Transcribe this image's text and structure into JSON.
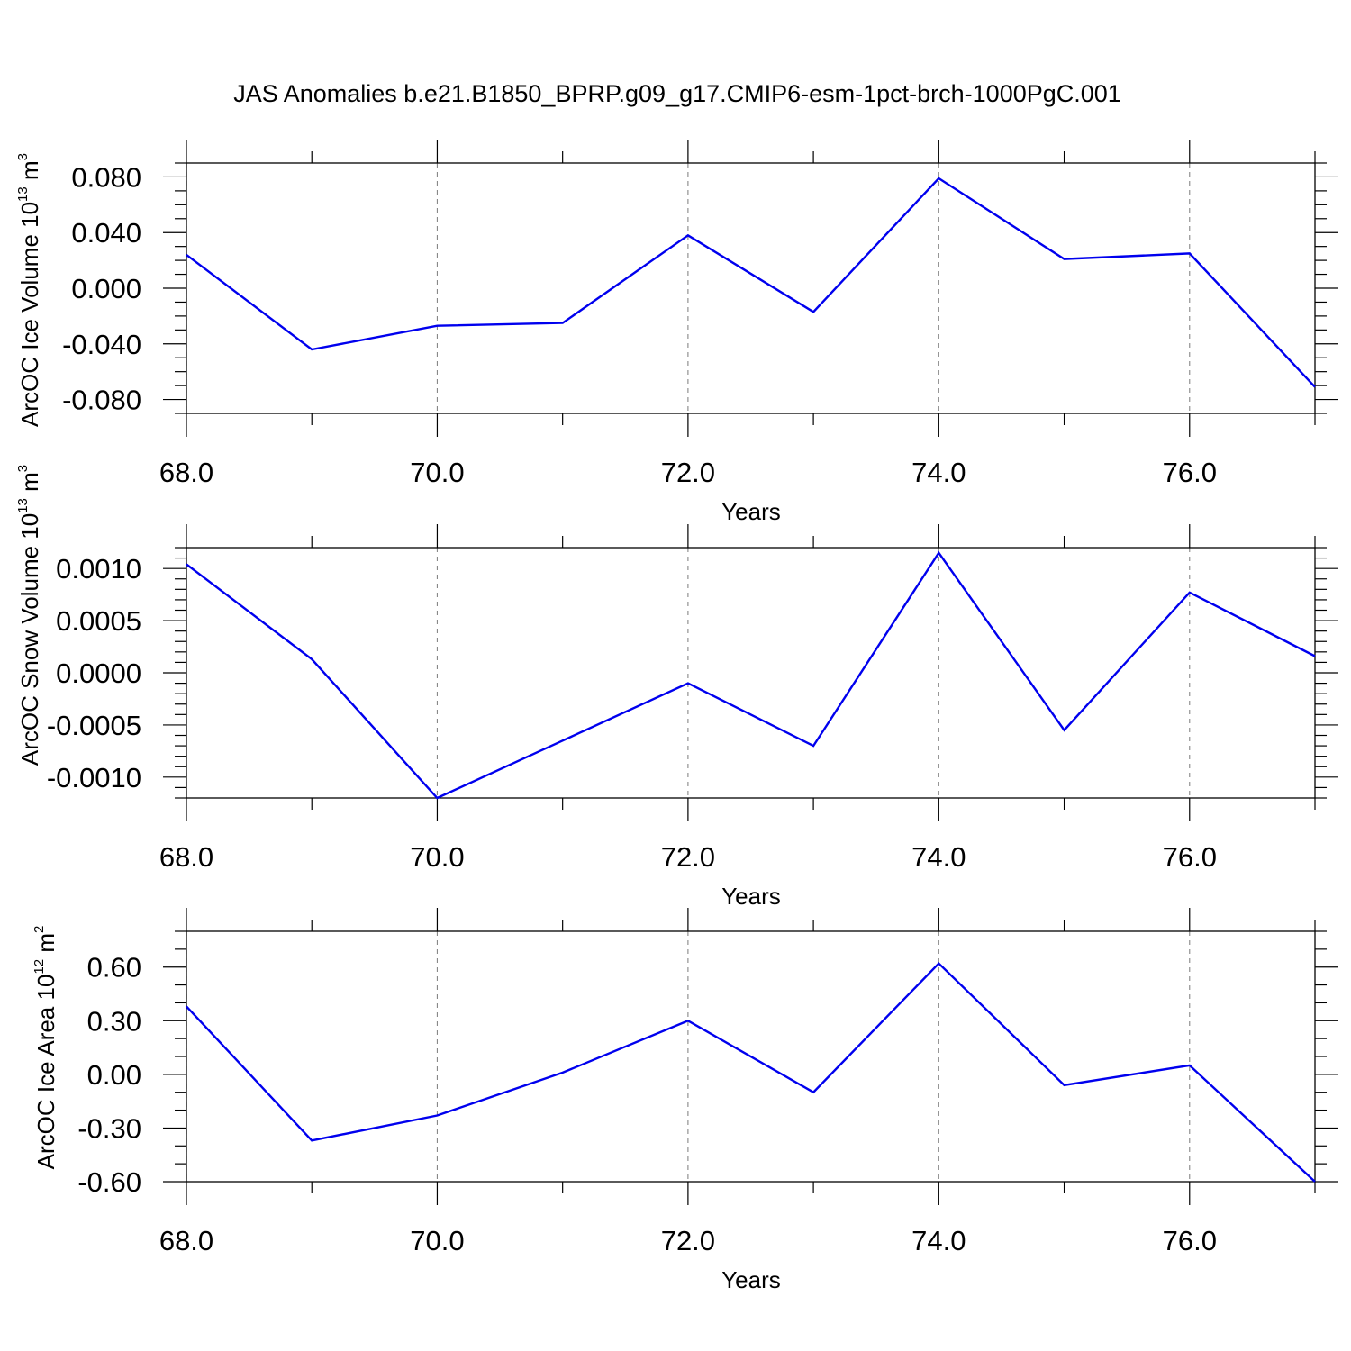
{
  "title": "JAS Anomalies b.e21.B1850_BPRP.g09_g17.CMIP6-esm-1pct-brch-1000PgC.001",
  "series_color": "#0000ee",
  "chart_data": [
    {
      "type": "line",
      "ylabel": {
        "prefix": "ArcOC Ice Volume 10",
        "sup": "13",
        "unit": " m",
        "unit_sup": "3"
      },
      "xlabel": "Years",
      "x": [
        68,
        69,
        70,
        71,
        72,
        73,
        74,
        75,
        76,
        77
      ],
      "y": [
        0.024,
        -0.044,
        -0.027,
        -0.025,
        0.038,
        -0.017,
        0.079,
        0.021,
        0.025,
        -0.071
      ],
      "xlim": [
        68,
        77
      ],
      "ylim": [
        -0.09,
        0.09
      ],
      "xticks": [
        68,
        70,
        72,
        74,
        76
      ],
      "xticklabels": [
        "68.0",
        "70.0",
        "72.0",
        "74.0",
        "76.0"
      ],
      "yticks": [
        0.08,
        0.04,
        0.0,
        -0.04,
        -0.08
      ],
      "yticklabels": [
        "0.080",
        "0.040",
        "0.000",
        "-0.040",
        "-0.080"
      ],
      "yminor_step": 0.01,
      "grid": "x-major-dashed"
    },
    {
      "type": "line",
      "ylabel": {
        "prefix": "ArcOC Snow Volume 10",
        "sup": "13",
        "unit": " m",
        "unit_sup": "3"
      },
      "xlabel": "Years",
      "x": [
        68,
        69,
        70,
        71,
        72,
        73,
        74,
        75,
        76,
        77
      ],
      "y": [
        0.00104,
        0.00013,
        -0.0012,
        -0.00065,
        -0.0001,
        -0.0007,
        0.00115,
        -0.00055,
        0.00077,
        0.00016
      ],
      "xlim": [
        68,
        77
      ],
      "ylim": [
        -0.0012,
        0.0012
      ],
      "xticks": [
        68,
        70,
        72,
        74,
        76
      ],
      "xticklabels": [
        "68.0",
        "70.0",
        "72.0",
        "74.0",
        "76.0"
      ],
      "yticks": [
        0.001,
        0.0005,
        0.0,
        -0.0005,
        -0.001
      ],
      "yticklabels": [
        "0.0010",
        "0.0005",
        "0.0000",
        "-0.0005",
        "-0.0010"
      ],
      "yminor_step": 0.0001,
      "grid": "x-major-dashed"
    },
    {
      "type": "line",
      "ylabel": {
        "prefix": "ArcOC Ice Area 10",
        "sup": "12",
        "unit": " m",
        "unit_sup": "2"
      },
      "xlabel": "Years",
      "x": [
        68,
        69,
        70,
        71,
        72,
        73,
        74,
        75,
        76,
        77
      ],
      "y": [
        0.38,
        -0.37,
        -0.23,
        0.01,
        0.3,
        -0.1,
        0.62,
        -0.06,
        0.05,
        -0.6
      ],
      "xlim": [
        68,
        77
      ],
      "ylim": [
        -0.6,
        0.8
      ],
      "xticks": [
        68,
        70,
        72,
        74,
        76
      ],
      "xticklabels": [
        "68.0",
        "70.0",
        "72.0",
        "74.0",
        "76.0"
      ],
      "yticks": [
        0.6,
        0.3,
        0.0,
        -0.3,
        -0.6
      ],
      "yticklabels": [
        "0.60",
        "0.30",
        "0.00",
        "-0.30",
        "-0.60"
      ],
      "yminor_step": 0.1,
      "grid": "x-major-dashed"
    }
  ]
}
